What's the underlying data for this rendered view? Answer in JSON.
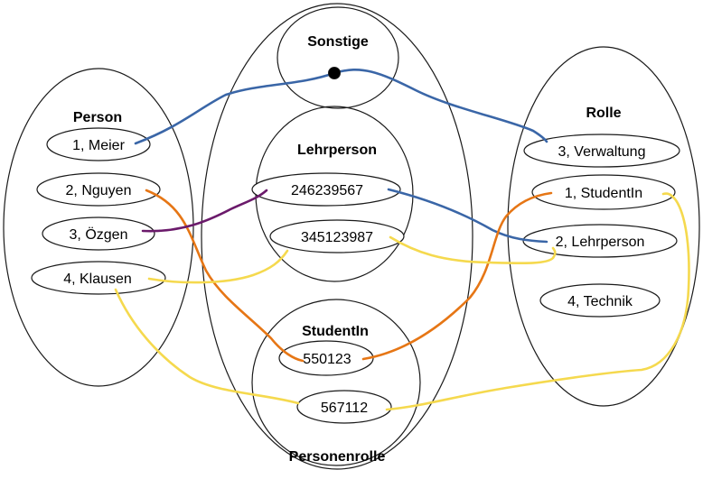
{
  "groups": {
    "person": "Person",
    "personenrolle": "Personenrolle",
    "sonstige": "Sonstige",
    "lehrperson": "Lehrperson",
    "studentin": "StudentIn",
    "rolle": "Rolle"
  },
  "persons": [
    "1, Meier",
    "2, Nguyen",
    "3, Özgen",
    "4, Klausen"
  ],
  "lehrperson_ids": [
    "246239567",
    "345123987"
  ],
  "student_ids": [
    "550123",
    "567112"
  ],
  "roles": [
    "3, Verwaltung",
    "1, StudentIn",
    "2, Lehrperson",
    "4, Technik"
  ],
  "colors": {
    "blue": "#3a66a7",
    "orange": "#e67615",
    "purple": "#6b1a6b",
    "yellow": "#f5d94e",
    "outline": "#1a1a1a",
    "dot": "#000000"
  },
  "icons": {
    "junction": "filled-circle"
  }
}
